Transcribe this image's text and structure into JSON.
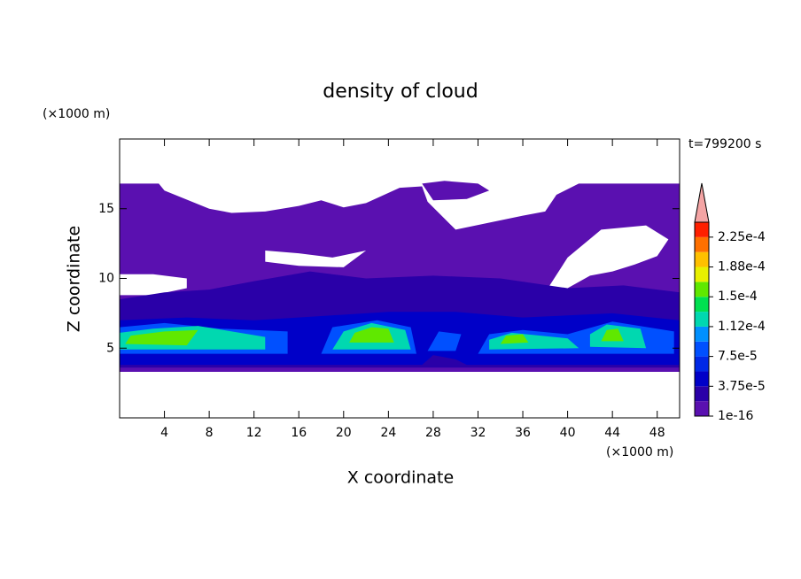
{
  "chart_data": {
    "type": "contour",
    "title": "density of cloud",
    "x_label": "X coordinate",
    "y_label": "Z coordinate",
    "x_unit": "(×1000 m)",
    "y_unit": "(×1000 m)",
    "annotation": "t=799200 s",
    "xlim": [
      0,
      50
    ],
    "ylim": [
      0,
      20
    ],
    "xticks": [
      4,
      8,
      12,
      16,
      20,
      24,
      28,
      32,
      36,
      40,
      44,
      48
    ],
    "yticks": [
      5,
      10,
      15
    ],
    "colorbar": {
      "lim": [
        1e-16,
        0.00024375
      ],
      "levels": [
        1e-16,
        1.875e-05,
        3.75e-05,
        5.625e-05,
        7.5e-05,
        9.375e-05,
        0.0001125,
        0.00013125,
        0.00015,
        0.00016875,
        0.0001875,
        0.00020625,
        0.000225
      ],
      "colors": [
        "#5a10b0",
        "#2a00a8",
        "#0000c8",
        "#0028e6",
        "#0050ff",
        "#0090ff",
        "#00d8b0",
        "#00e050",
        "#60e800",
        "#e8f000",
        "#ffc000",
        "#ff7000",
        "#ff2000"
      ],
      "extend_color": "#f4a4a4",
      "ticks": [
        {
          "value": 1e-16,
          "label": "1e-16"
        },
        {
          "value": 3.75e-05,
          "label": "3.75e-5"
        },
        {
          "value": 7.5e-05,
          "label": "7.5e-5"
        },
        {
          "value": 0.0001125,
          "label": "1.12e-4"
        },
        {
          "value": 0.00015,
          "label": "1.5e-4"
        },
        {
          "value": 0.0001875,
          "label": "1.88e-4"
        },
        {
          "value": 0.000225,
          "label": "2.25e-4"
        }
      ]
    },
    "contours": [
      {
        "level": 1e-16,
        "rings": [
          [
            [
              0,
              3.3
            ],
            [
              50,
              3.3
            ],
            [
              50,
              16.8
            ],
            [
              45,
              16.8
            ],
            [
              41,
              16.8
            ],
            [
              39,
              16
            ],
            [
              38,
              14.8
            ],
            [
              36,
              14.5
            ],
            [
              33,
              14
            ],
            [
              30,
              13.5
            ],
            [
              27.5,
              15.5
            ],
            [
              27,
              16.6
            ],
            [
              25,
              16.5
            ],
            [
              22,
              15.4
            ],
            [
              20,
              15.1
            ],
            [
              18,
              15.6
            ],
            [
              16,
              15.2
            ],
            [
              13,
              14.8
            ],
            [
              10,
              14.7
            ],
            [
              8,
              15
            ],
            [
              4,
              16.3
            ],
            [
              3.5,
              16.8
            ],
            [
              0,
              16.8
            ]
          ],
          [
            [
              0,
              10.3
            ],
            [
              3,
              10.3
            ],
            [
              6,
              10
            ],
            [
              6,
              9.3
            ],
            [
              3,
              8.8
            ],
            [
              0,
              8.8
            ]
          ],
          [
            [
              13,
              12
            ],
            [
              16,
              11.8
            ],
            [
              19,
              11.5
            ],
            [
              22,
              12
            ],
            [
              20,
              10.8
            ],
            [
              16,
              10.9
            ],
            [
              13,
              11.2
            ]
          ],
          [
            [
              38,
              9
            ],
            [
              40,
              11.5
            ],
            [
              43,
              13.5
            ],
            [
              47,
              13.8
            ],
            [
              49,
              12.8
            ],
            [
              48,
              11.6
            ],
            [
              46,
              11
            ],
            [
              44,
              10.5
            ],
            [
              42,
              10.2
            ],
            [
              40,
              9.3
            ]
          ],
          [
            [
              27,
              16.8
            ],
            [
              29,
              17
            ],
            [
              32,
              16.8
            ],
            [
              33,
              16.3
            ],
            [
              31,
              15.7
            ],
            [
              28,
              15.6
            ]
          ]
        ]
      },
      {
        "level": 1.875e-05,
        "rings": [
          [
            [
              0,
              3.6
            ],
            [
              50,
              3.6
            ],
            [
              50,
              9
            ],
            [
              45,
              9.5
            ],
            [
              40,
              9.3
            ],
            [
              34,
              10
            ],
            [
              28,
              10.2
            ],
            [
              22,
              10
            ],
            [
              17,
              10.5
            ],
            [
              12,
              9.8
            ],
            [
              8,
              9.2
            ],
            [
              4,
              9
            ],
            [
              0,
              8.5
            ]
          ]
        ]
      },
      {
        "level": 3.75e-05,
        "rings": [
          [
            [
              0,
              3.8
            ],
            [
              27,
              3.8
            ],
            [
              28,
              4.5
            ],
            [
              30,
              4.2
            ],
            [
              31,
              3.8
            ],
            [
              50,
              3.8
            ],
            [
              50,
              7
            ],
            [
              44,
              7.5
            ],
            [
              36,
              7.2
            ],
            [
              30,
              7.6
            ],
            [
              24,
              7.6
            ],
            [
              18,
              7.3
            ],
            [
              12,
              7
            ],
            [
              6,
              7.2
            ],
            [
              0,
              7
            ]
          ]
        ]
      },
      {
        "level": 7.5e-05,
        "rings": [
          [
            [
              0,
              4.6
            ],
            [
              15,
              4.6
            ],
            [
              15,
              6.2
            ],
            [
              9,
              6.4
            ],
            [
              4,
              6.8
            ],
            [
              0,
              6.5
            ]
          ],
          [
            [
              18,
              4.6
            ],
            [
              26.5,
              4.6
            ],
            [
              26,
              6.5
            ],
            [
              23,
              7
            ],
            [
              19,
              6.5
            ]
          ],
          [
            [
              27.5,
              4.8
            ],
            [
              30,
              4.8
            ],
            [
              30.5,
              6
            ],
            [
              28.5,
              6.2
            ]
          ],
          [
            [
              32,
              4.6
            ],
            [
              49.5,
              4.6
            ],
            [
              49.5,
              6.2
            ],
            [
              44,
              6.9
            ],
            [
              40,
              6
            ],
            [
              36,
              6.3
            ],
            [
              33,
              6
            ]
          ]
        ]
      },
      {
        "level": 0.0001125,
        "rings": [
          [
            [
              0,
              4.9
            ],
            [
              13,
              4.9
            ],
            [
              13,
              5.8
            ],
            [
              7,
              6.6
            ],
            [
              3,
              6.4
            ],
            [
              0,
              6.1
            ]
          ],
          [
            [
              19,
              4.9
            ],
            [
              26,
              4.9
            ],
            [
              25.5,
              6.3
            ],
            [
              22.5,
              6.8
            ],
            [
              20,
              6.2
            ]
          ],
          [
            [
              33,
              4.9
            ],
            [
              41,
              5
            ],
            [
              40,
              5.7
            ],
            [
              35,
              6.1
            ],
            [
              33,
              5.6
            ]
          ],
          [
            [
              42,
              5.1
            ],
            [
              47,
              5
            ],
            [
              46.5,
              6.4
            ],
            [
              43.5,
              6.7
            ],
            [
              42,
              6
            ]
          ]
        ]
      },
      {
        "level": 0.00015,
        "rings": [
          [
            [
              0.5,
              5.3
            ],
            [
              6,
              5.2
            ],
            [
              7,
              6.3
            ],
            [
              4,
              6.2
            ],
            [
              1,
              5.9
            ]
          ],
          [
            [
              20.5,
              5.4
            ],
            [
              24.5,
              5.4
            ],
            [
              24,
              6.4
            ],
            [
              22.5,
              6.5
            ],
            [
              21,
              6.1
            ]
          ],
          [
            [
              34,
              5.3
            ],
            [
              36.5,
              5.4
            ],
            [
              36,
              6
            ],
            [
              34.5,
              5.9
            ]
          ],
          [
            [
              43,
              5.5
            ],
            [
              45,
              5.5
            ],
            [
              44.5,
              6.4
            ],
            [
              43.5,
              6.3
            ]
          ]
        ]
      }
    ]
  }
}
